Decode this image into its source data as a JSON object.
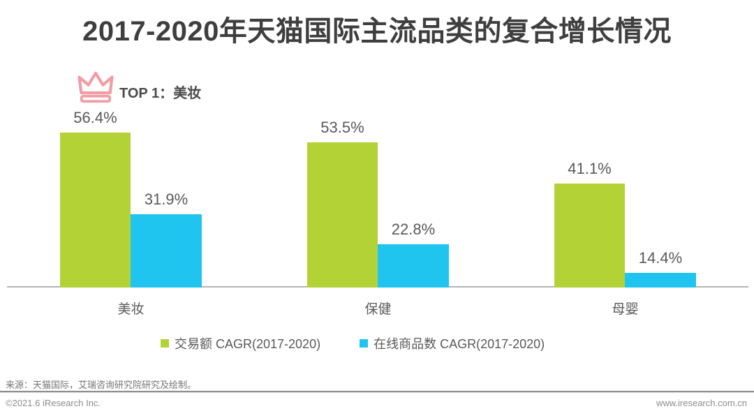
{
  "page": {
    "title": "2017-2020年天猫国际主流品类的复合增长情况"
  },
  "top_badge": {
    "icon": "crown-icon",
    "label": "TOP 1：美妆"
  },
  "chart_data": {
    "type": "bar",
    "title": "2017-2020年天猫国际主流品类的复合增长情况",
    "categories": [
      "美妆",
      "保健",
      "母婴"
    ],
    "series": [
      {
        "name": "交易额 CAGR(2017-2020)",
        "color": "#b2d235",
        "values": [
          56.4,
          53.5,
          41.1
        ]
      },
      {
        "name": "在线商品数 CAGR(2017-2020)",
        "color": "#1fc4ef",
        "values": [
          31.9,
          22.8,
          14.4
        ]
      }
    ],
    "value_suffix": "%",
    "ylim": [
      0,
      60
    ],
    "grid": false,
    "legend_position": "bottom",
    "annotations": [
      "TOP 1：美妆"
    ]
  },
  "footer": {
    "source": "来源：天猫国际，艾瑞咨询研究院研究及绘制。",
    "copyright": "©2021.6 iResearch Inc.",
    "website": "www.iresearch.com.cn"
  },
  "colors": {
    "bar_green": "#b2d235",
    "bar_blue": "#1fc4ef",
    "crown_pink": "#f19da4",
    "title_text": "#3e3e3e",
    "label_text": "#595959",
    "axis_line": "#b3b3b3",
    "footer_rule": "#8f8f8f"
  }
}
